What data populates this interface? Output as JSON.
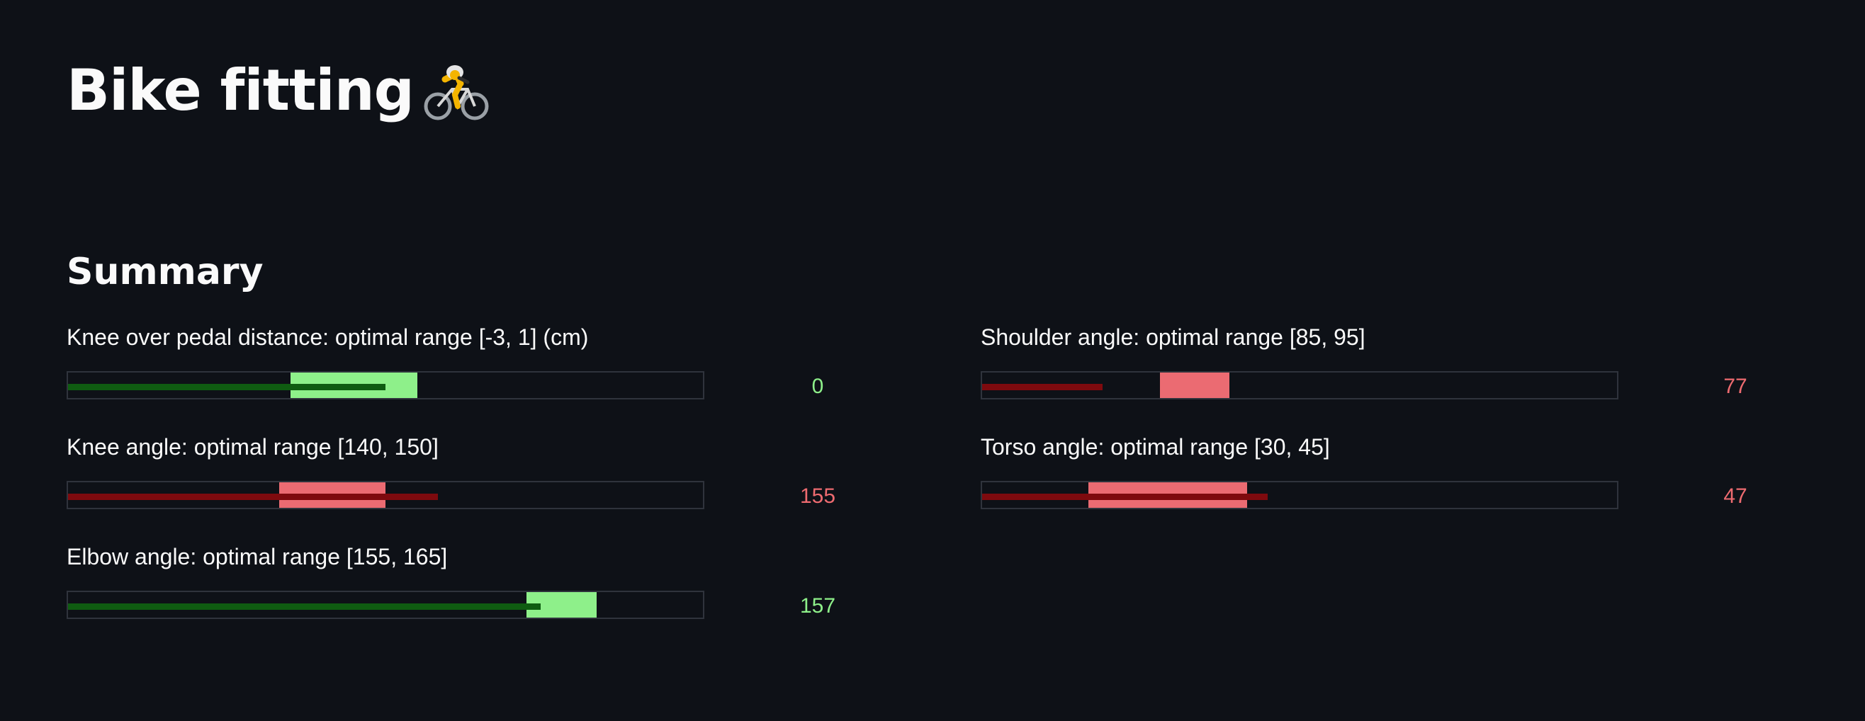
{
  "page": {
    "title": "Bike fitting",
    "title_icon": "person-biking-icon",
    "section_heading": "Summary"
  },
  "colors": {
    "background": "#0e1117",
    "in_range_band": "#8ef08a",
    "in_range_value": "#0f5c11",
    "out_of_range_band": "#eb6b72",
    "out_of_range_value": "#7e0a0e"
  },
  "metrics": [
    {
      "label": "Knee over pedal distance: optimal range [-3, 1] (cm)",
      "value": "0",
      "status": "ok",
      "band": [
        0.35,
        0.55
      ],
      "fill": 0.5
    },
    {
      "label": "Shoulder angle: optimal range [85, 95]",
      "value": "77",
      "status": "bad",
      "band": [
        0.28,
        0.39
      ],
      "fill": 0.19
    },
    {
      "label": "Knee angle: optimal range [140, 150]",
      "value": "155",
      "status": "bad",
      "band": [
        0.333,
        0.5
      ],
      "fill": 0.583
    },
    {
      "label": "Torso angle: optimal range [30, 45]",
      "value": "47",
      "status": "bad",
      "band": [
        0.167,
        0.417
      ],
      "fill": 0.45
    },
    {
      "label": "Elbow angle: optimal range [155, 165]",
      "value": "157",
      "status": "ok",
      "band": [
        0.722,
        0.833
      ],
      "fill": 0.744
    }
  ]
}
